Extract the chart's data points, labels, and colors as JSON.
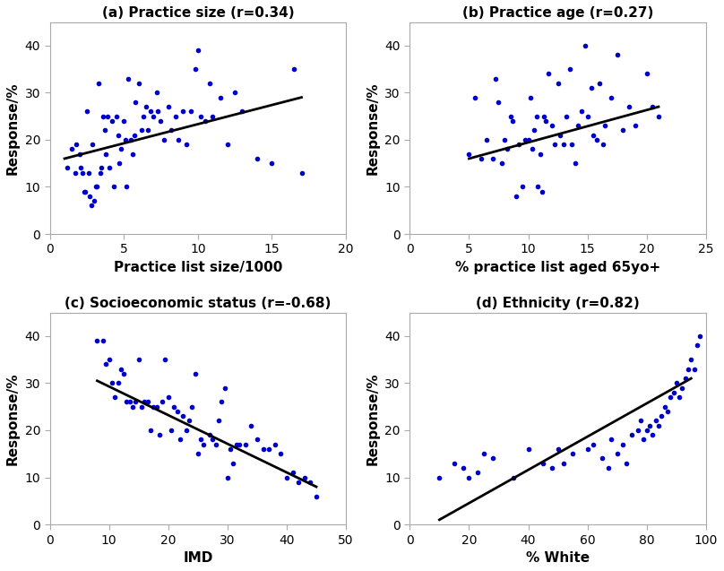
{
  "panels": [
    {
      "title": "(a) Practice size (r=0.34)",
      "xlabel": "Practice list size/1000",
      "ylabel": "Response/%",
      "xlim": [
        0,
        20
      ],
      "ylim": [
        0,
        45
      ],
      "xticks": [
        0,
        5,
        10,
        15,
        20
      ],
      "yticks": [
        0,
        10,
        20,
        30,
        40
      ],
      "line_x": [
        1,
        17
      ],
      "line_y": [
        16.0,
        29.0
      ],
      "x": [
        1.2,
        1.5,
        1.7,
        1.8,
        2.0,
        2.1,
        2.2,
        2.3,
        2.4,
        2.5,
        2.6,
        2.7,
        2.8,
        2.9,
        3.0,
        3.1,
        3.2,
        3.3,
        3.4,
        3.5,
        3.6,
        3.7,
        3.8,
        3.9,
        4.0,
        4.2,
        4.3,
        4.5,
        4.6,
        4.7,
        4.8,
        5.0,
        5.1,
        5.2,
        5.3,
        5.5,
        5.6,
        5.7,
        5.8,
        6.0,
        6.2,
        6.3,
        6.5,
        6.6,
        6.8,
        7.0,
        7.2,
        7.3,
        7.5,
        7.7,
        8.0,
        8.2,
        8.5,
        8.7,
        9.0,
        9.2,
        9.5,
        9.8,
        10.0,
        10.2,
        10.5,
        10.8,
        11.0,
        11.5,
        12.0,
        12.5,
        13.0,
        14.0,
        15.0,
        16.5,
        17.0
      ],
      "y": [
        14,
        18,
        13,
        19,
        17,
        14,
        13,
        9,
        9,
        26,
        13,
        8,
        6,
        19,
        7,
        10,
        10,
        32,
        13,
        14,
        25,
        22,
        17,
        25,
        14,
        24,
        10,
        25,
        21,
        15,
        18,
        24,
        20,
        10,
        33,
        20,
        17,
        21,
        28,
        32,
        22,
        25,
        27,
        22,
        26,
        25,
        30,
        26,
        24,
        20,
        27,
        22,
        25,
        20,
        26,
        19,
        26,
        35,
        39,
        25,
        24,
        32,
        25,
        29,
        19,
        30,
        26,
        16,
        15,
        35,
        13
      ]
    },
    {
      "title": "(b) Practice age (r=0.27)",
      "xlabel": "% practice list aged 65yo+",
      "ylabel": "Response/%",
      "xlim": [
        0,
        25
      ],
      "ylim": [
        0,
        45
      ],
      "xticks": [
        0,
        5,
        10,
        15,
        20,
        25
      ],
      "yticks": [
        0,
        10,
        20,
        30,
        40
      ],
      "line_x": [
        5,
        21
      ],
      "line_y": [
        16.0,
        27.0
      ],
      "x": [
        5.0,
        5.5,
        6.0,
        6.5,
        7.0,
        7.2,
        7.5,
        7.8,
        8.0,
        8.2,
        8.5,
        8.7,
        9.0,
        9.2,
        9.5,
        9.7,
        10.0,
        10.2,
        10.3,
        10.5,
        10.7,
        10.8,
        11.0,
        11.2,
        11.3,
        11.5,
        11.7,
        12.0,
        12.2,
        12.5,
        12.7,
        13.0,
        13.2,
        13.5,
        13.7,
        14.0,
        14.2,
        14.5,
        14.8,
        15.0,
        15.3,
        15.5,
        15.8,
        16.0,
        16.3,
        16.5,
        17.0,
        17.5,
        18.0,
        18.5,
        19.0,
        20.0,
        20.5,
        21.0
      ],
      "y": [
        17,
        29,
        16,
        20,
        16,
        33,
        28,
        15,
        20,
        18,
        25,
        24,
        8,
        19,
        10,
        20,
        20,
        29,
        18,
        22,
        25,
        10,
        17,
        9,
        25,
        24,
        34,
        23,
        19,
        32,
        21,
        19,
        25,
        35,
        19,
        15,
        23,
        26,
        40,
        25,
        31,
        21,
        20,
        32,
        19,
        23,
        29,
        38,
        22,
        27,
        23,
        34,
        27,
        25
      ]
    },
    {
      "title": "(c) Socioeconomic status (r=-0.68)",
      "xlabel": "IMD",
      "ylabel": "Response/%",
      "xlim": [
        0,
        50
      ],
      "ylim": [
        0,
        45
      ],
      "xticks": [
        0,
        10,
        20,
        30,
        40,
        50
      ],
      "yticks": [
        0,
        10,
        20,
        30,
        40
      ],
      "line_x": [
        8,
        45
      ],
      "line_y": [
        30.5,
        8.0
      ],
      "x": [
        8.0,
        9.0,
        9.5,
        10.0,
        10.5,
        11.0,
        11.5,
        12.0,
        12.5,
        13.0,
        13.5,
        14.0,
        14.5,
        15.0,
        15.5,
        16.0,
        16.5,
        17.0,
        17.5,
        18.0,
        18.5,
        19.0,
        19.5,
        20.0,
        20.5,
        21.0,
        21.5,
        22.0,
        22.5,
        23.0,
        23.5,
        24.0,
        24.5,
        25.0,
        25.5,
        26.0,
        27.0,
        27.5,
        28.0,
        28.5,
        29.0,
        29.5,
        30.0,
        30.5,
        31.0,
        31.5,
        32.0,
        33.0,
        34.0,
        35.0,
        36.0,
        37.0,
        38.0,
        39.0,
        40.0,
        41.0,
        42.0,
        43.0,
        44.0,
        45.0
      ],
      "y": [
        39,
        39,
        34,
        35,
        30,
        27,
        30,
        33,
        32,
        26,
        26,
        25,
        26,
        35,
        25,
        26,
        26,
        20,
        25,
        25,
        19,
        26,
        35,
        27,
        20,
        25,
        24,
        18,
        23,
        20,
        22,
        25,
        32,
        15,
        18,
        17,
        19,
        18,
        17,
        22,
        26,
        29,
        10,
        16,
        13,
        17,
        17,
        17,
        21,
        18,
        16,
        16,
        17,
        15,
        10,
        11,
        9,
        10,
        9,
        6
      ]
    },
    {
      "title": "(d) Ethnicity (r=0.82)",
      "xlabel": "% White",
      "ylabel": "Response/%",
      "xlim": [
        0,
        100
      ],
      "ylim": [
        0,
        45
      ],
      "xticks": [
        0,
        20,
        40,
        60,
        80,
        100
      ],
      "yticks": [
        0,
        10,
        20,
        30,
        40
      ],
      "line_x": [
        10,
        95
      ],
      "line_y": [
        1.0,
        31.0
      ],
      "x": [
        10,
        15,
        18,
        20,
        23,
        25,
        28,
        35,
        40,
        45,
        48,
        50,
        52,
        55,
        60,
        62,
        65,
        67,
        68,
        70,
        72,
        73,
        75,
        77,
        78,
        79,
        80,
        81,
        82,
        83,
        84,
        85,
        86,
        87,
        88,
        89,
        90,
        91,
        92,
        93,
        94,
        95,
        96,
        97,
        98
      ],
      "y": [
        10,
        13,
        12,
        10,
        11,
        15,
        14,
        10,
        16,
        13,
        12,
        16,
        13,
        15,
        16,
        17,
        14,
        12,
        18,
        15,
        17,
        13,
        19,
        20,
        22,
        18,
        20,
        21,
        19,
        22,
        21,
        23,
        25,
        24,
        27,
        28,
        30,
        27,
        29,
        31,
        33,
        35,
        33,
        38,
        40
      ]
    }
  ],
  "dot_color": "#0000CC",
  "line_color": "#000000",
  "dot_size": 6,
  "dot_marker": ".",
  "line_width": 2.0,
  "title_fontsize": 11,
  "label_fontsize": 11,
  "tick_fontsize": 10,
  "background_color": "#ffffff",
  "spine_color": "#aaaaaa"
}
